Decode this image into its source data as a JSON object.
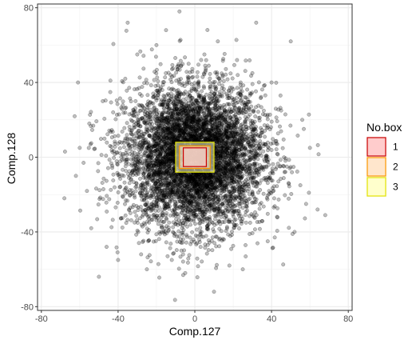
{
  "chart_data": {
    "type": "scatter",
    "xlabel": "Comp.127",
    "ylabel": "Comp.128",
    "xlim": [
      -82,
      82
    ],
    "ylim": [
      -82,
      82
    ],
    "x_ticks": [
      -80,
      -40,
      0,
      40,
      80
    ],
    "y_ticks": [
      -80,
      -40,
      0,
      40,
      80
    ],
    "x_tick_labels": [
      "-80",
      "-40",
      "0",
      "40",
      "80"
    ],
    "y_tick_labels": [
      "-80",
      "-40",
      "0",
      "40",
      "80"
    ],
    "grid": true,
    "theme": "bw",
    "point_style": {
      "color": "#000000",
      "alpha": 0.25,
      "count": 6000,
      "distribution": "approximately bivariate normal, centered near (0, 0), spread about 15-20 units"
    },
    "points": [
      {
        "x": -68,
        "y": -22
      },
      {
        "x": -62,
        "y": -10
      },
      {
        "x": -58,
        "y": -3
      },
      {
        "x": -54,
        "y": -38
      },
      {
        "x": -50,
        "y": -64
      },
      {
        "x": -46,
        "y": -48
      },
      {
        "x": -44,
        "y": 41
      },
      {
        "x": -40,
        "y": -55
      },
      {
        "x": -35,
        "y": 72
      },
      {
        "x": -30,
        "y": 55
      },
      {
        "x": -28,
        "y": -52
      },
      {
        "x": -25,
        "y": -60
      },
      {
        "x": -20,
        "y": 60
      },
      {
        "x": -15,
        "y": 68
      },
      {
        "x": -12,
        "y": -55
      },
      {
        "x": -8,
        "y": 78
      },
      {
        "x": -5,
        "y": -62
      },
      {
        "x": 5,
        "y": 55
      },
      {
        "x": 10,
        "y": -72
      },
      {
        "x": 12,
        "y": 62
      },
      {
        "x": 18,
        "y": -58
      },
      {
        "x": 22,
        "y": 52
      },
      {
        "x": 25,
        "y": -60
      },
      {
        "x": 32,
        "y": 72
      },
      {
        "x": 38,
        "y": -45
      },
      {
        "x": 40,
        "y": 40
      },
      {
        "x": 50,
        "y": 62
      },
      {
        "x": 52,
        "y": -40
      },
      {
        "x": 56,
        "y": 20
      },
      {
        "x": 58,
        "y": -25
      },
      {
        "x": 60,
        "y": 5
      },
      {
        "x": 64,
        "y": -28
      },
      {
        "x": 68,
        "y": -31
      },
      {
        "x": 55,
        "y": -15
      },
      {
        "x": -55,
        "y": 18
      },
      {
        "x": -48,
        "y": 30
      },
      {
        "x": -60,
        "y": 5
      },
      {
        "x": 45,
        "y": 25
      },
      {
        "x": 48,
        "y": -5
      },
      {
        "x": 30,
        "y": 45
      }
    ],
    "rectangles": [
      {
        "box": "3",
        "xmin": -10,
        "xmax": 10,
        "ymin": -8,
        "ymax": 8
      },
      {
        "box": "2",
        "xmin": -8,
        "xmax": 8,
        "ymin": -6,
        "ymax": 6
      },
      {
        "box": "1",
        "xmin": -6,
        "xmax": 6,
        "ymin": -5,
        "ymax": 5
      }
    ],
    "legend": {
      "title": "No.box",
      "position": "right",
      "entries": [
        {
          "label": "1",
          "fill": "#ffcccc",
          "border": "#cc0000"
        },
        {
          "label": "2",
          "fill": "#ffe6cc",
          "border": "#ff9900"
        },
        {
          "label": "3",
          "fill": "#ffffcc",
          "border": "#e6e600"
        }
      ]
    }
  }
}
